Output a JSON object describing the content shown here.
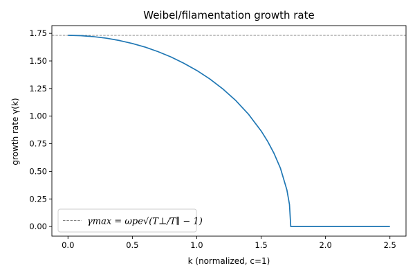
{
  "chart_data": {
    "type": "line",
    "title": "Weibel/filamentation growth rate",
    "xlabel": "k (normalized, c=1)",
    "ylabel": "growth rate γ(k)",
    "xlim": [
      -0.125,
      2.625
    ],
    "ylim": [
      -0.087,
      1.82
    ],
    "xticks": [
      0.0,
      0.5,
      1.0,
      1.5,
      2.0,
      2.5
    ],
    "xtick_labels": [
      "0.0",
      "0.5",
      "1.0",
      "1.5",
      "2.0",
      "2.5"
    ],
    "yticks": [
      0.0,
      0.25,
      0.5,
      0.75,
      1.0,
      1.25,
      1.5,
      1.75
    ],
    "ytick_labels": [
      "0.00",
      "0.25",
      "0.50",
      "0.75",
      "1.00",
      "1.25",
      "1.50",
      "1.75"
    ],
    "grid": false,
    "legend_position": "lower-left",
    "reference_line": {
      "y": 1.732,
      "style": "dashed",
      "color": "#808080",
      "label": "γmax = ωpe√(T⊥/T∥ − 1)"
    },
    "series": [
      {
        "color": "#1f77b4",
        "x": [
          0.0,
          0.1,
          0.2,
          0.3,
          0.4,
          0.5,
          0.6,
          0.7,
          0.8,
          0.9,
          1.0,
          1.1,
          1.2,
          1.3,
          1.4,
          1.5,
          1.55,
          1.6,
          1.65,
          1.7,
          1.72,
          1.73,
          1.74,
          1.8,
          2.0,
          2.2,
          2.5
        ],
        "values": [
          1.732,
          1.729,
          1.72,
          1.706,
          1.685,
          1.658,
          1.625,
          1.584,
          1.536,
          1.479,
          1.414,
          1.338,
          1.249,
          1.145,
          1.02,
          0.866,
          0.773,
          0.663,
          0.528,
          0.332,
          0.2,
          0.0,
          0.0,
          0.0,
          0.0,
          0.0,
          0.0
        ]
      }
    ]
  }
}
